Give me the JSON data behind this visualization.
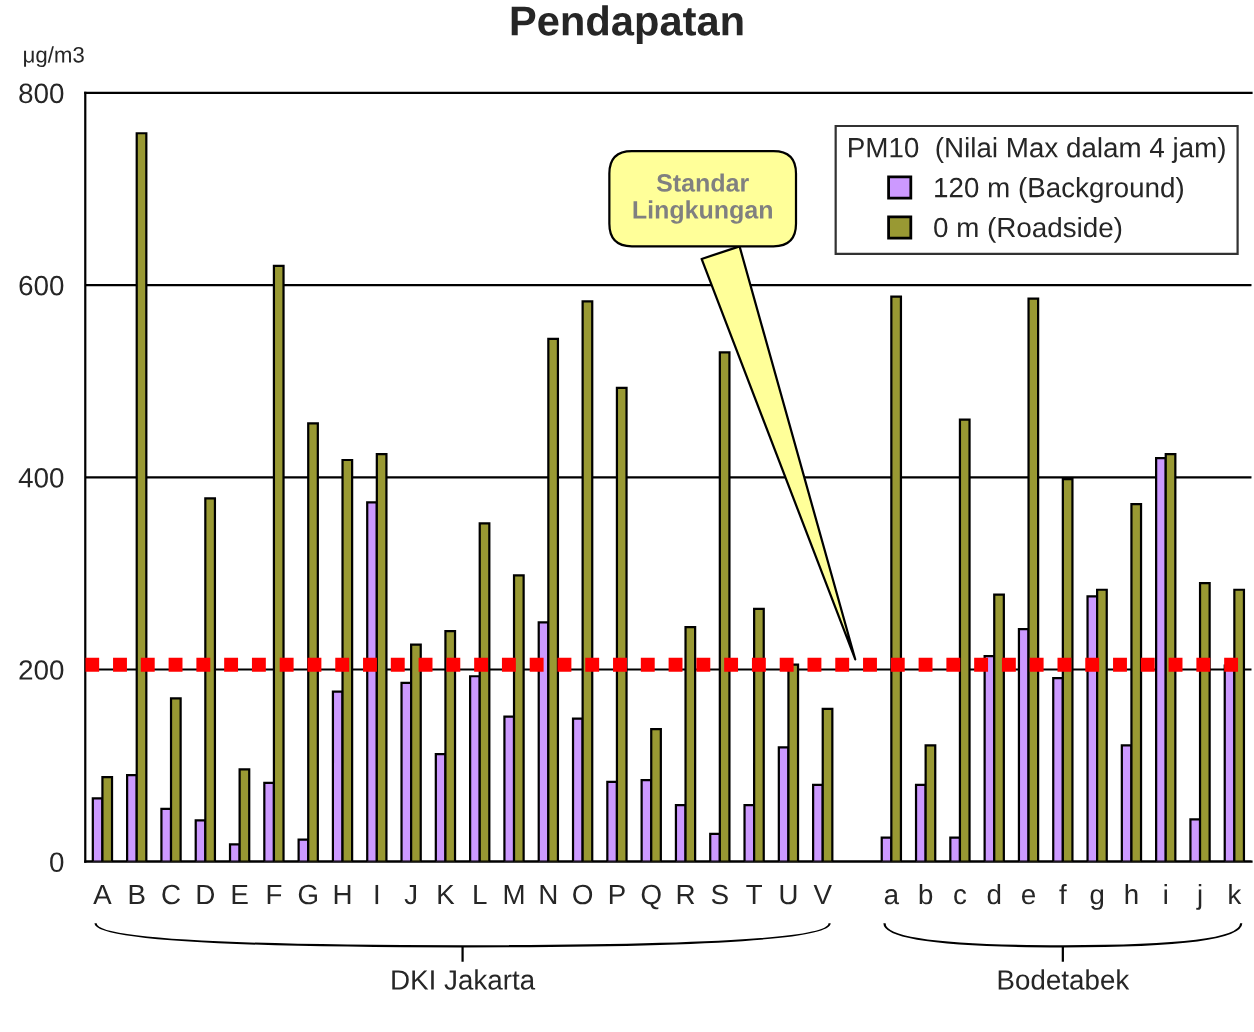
{
  "chart_data": {
    "type": "bar",
    "title": "Pendapatan",
    "ylabel": "μg/m3",
    "legend_title": "PM10  (Nilai Max dalam 4 jam)",
    "categories": [
      "A",
      "B",
      "C",
      "D",
      "E",
      "F",
      "G",
      "H",
      "I",
      "J",
      "K",
      "L",
      "M",
      "N",
      "O",
      "P",
      "Q",
      "R",
      "S",
      "T",
      "U",
      "V",
      null,
      "a",
      "b",
      "c",
      "d",
      "e",
      "f",
      "g",
      "h",
      "i",
      "j",
      "k"
    ],
    "series": [
      {
        "name": "120 m (Background)",
        "color": "#cc99ff",
        "values": [
          66,
          90,
          55,
          43,
          18,
          82,
          23,
          177,
          374,
          186,
          112,
          193,
          151,
          249,
          149,
          83,
          85,
          59,
          29,
          59,
          119,
          80,
          null,
          25,
          80,
          25,
          214,
          242,
          191,
          276,
          121,
          420,
          44,
          204
        ]
      },
      {
        "name": "0 m (Roadside)",
        "color": "#999933",
        "values": [
          88,
          758,
          170,
          378,
          96,
          620,
          456,
          418,
          424,
          226,
          240,
          352,
          298,
          544,
          583,
          493,
          138,
          244,
          530,
          263,
          205,
          159,
          null,
          588,
          121,
          460,
          278,
          586,
          398,
          283,
          372,
          424,
          290,
          283
        ]
      }
    ],
    "ylim": [
      0,
      800
    ],
    "yticks": [
      0,
      200,
      400,
      600,
      800
    ],
    "grid": "y",
    "legend": "top right",
    "ref_lines": [
      {
        "axis": "y",
        "value": 205,
        "color": "#ff0000",
        "line_style": "dotted"
      }
    ],
    "annotations": [
      "Standar\nLingkungan",
      "DKI Jakarta",
      "Bodetabek"
    ]
  }
}
